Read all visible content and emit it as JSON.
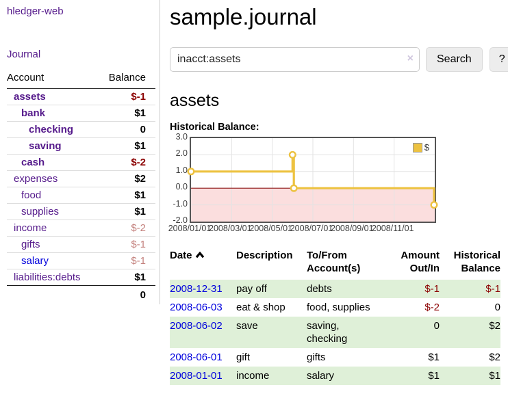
{
  "brand": "hledger-web",
  "nav": {
    "journal": "Journal"
  },
  "sidebar": {
    "header": {
      "account": "Account",
      "balance": "Balance"
    },
    "accounts": [
      {
        "name": "assets",
        "balance": "$-1",
        "indent": 1,
        "bold": true,
        "link": "purple",
        "balance_style": "neg"
      },
      {
        "name": "bank",
        "balance": "$1",
        "indent": 2,
        "bold": true,
        "link": "purple",
        "balance_style": "pos"
      },
      {
        "name": "checking",
        "balance": "0",
        "indent": 3,
        "bold": true,
        "link": "purple",
        "balance_style": "pos"
      },
      {
        "name": "saving",
        "balance": "$1",
        "indent": 3,
        "bold": true,
        "link": "purple",
        "balance_style": "pos"
      },
      {
        "name": "cash",
        "balance": "$-2",
        "indent": 2,
        "bold": true,
        "link": "purple",
        "balance_style": "neg"
      },
      {
        "name": "expenses",
        "balance": "$2",
        "indent": 1,
        "bold": false,
        "link": "purple",
        "balance_style": "pos"
      },
      {
        "name": "food",
        "balance": "$1",
        "indent": 2,
        "bold": false,
        "link": "purple",
        "balance_style": "pos"
      },
      {
        "name": "supplies",
        "balance": "$1",
        "indent": 2,
        "bold": false,
        "link": "purple",
        "balance_style": "pos"
      },
      {
        "name": "income",
        "balance": "$-2",
        "indent": 1,
        "bold": false,
        "link": "purple",
        "balance_style": "negsoft"
      },
      {
        "name": "gifts",
        "balance": "$-1",
        "indent": 2,
        "bold": false,
        "link": "purple",
        "balance_style": "negsoft"
      },
      {
        "name": "salary",
        "balance": "$-1",
        "indent": 2,
        "bold": false,
        "link": "blue",
        "balance_style": "negsoft"
      },
      {
        "name": "liabilities:debts",
        "balance": "$1",
        "indent": 1,
        "bold": false,
        "link": "purple",
        "balance_style": "pos"
      }
    ],
    "total": "0"
  },
  "page": {
    "title": "sample.journal",
    "account_title": "assets",
    "chart_label": "Historical Balance:"
  },
  "search": {
    "value": "inacct:assets",
    "clear": "×",
    "button": "Search",
    "help": "?"
  },
  "chart_data": {
    "type": "line",
    "title": "Historical Balance:",
    "step": true,
    "series": [
      {
        "name": "$",
        "color": "#edc240",
        "points": [
          {
            "date": "2008-01-01",
            "value": 1
          },
          {
            "date": "2008-06-01",
            "value": 2
          },
          {
            "date": "2008-06-03",
            "value": 0
          },
          {
            "date": "2008-12-31",
            "value": -1
          }
        ]
      }
    ],
    "x_tick_labels": [
      "2008/01/01",
      "2008/03/01",
      "2008/05/01",
      "2008/07/01",
      "2008/09/01",
      "2008/11/01"
    ],
    "y_tick_labels": [
      "3.0",
      "2.0",
      "1.0",
      "0.0",
      "-1.0",
      "-2.0"
    ],
    "ylim": [
      -2,
      3
    ],
    "x_range": [
      "2008-01-01",
      "2008-12-31"
    ],
    "grid": true,
    "gridline_color": "#e3e3e3",
    "negative_fill": "#fbdede",
    "zero_line_color": "#8b1414",
    "legend": {
      "label": "$",
      "position": "top-right"
    }
  },
  "register": {
    "headers": {
      "date": "Date",
      "description": "Description",
      "account": "To/From Account(s)",
      "amount": "Amount Out/In",
      "balance": "Historical Balance"
    },
    "rows": [
      {
        "date": "2008-12-31",
        "description": "pay off",
        "accounts": "debts",
        "amount": "$-1",
        "balance": "$-1"
      },
      {
        "date": "2008-06-03",
        "description": "eat & shop",
        "accounts": "food, supplies",
        "amount": "$-2",
        "balance": "0"
      },
      {
        "date": "2008-06-02",
        "description": "save",
        "accounts": "saving, checking",
        "amount": "0",
        "balance": "$2"
      },
      {
        "date": "2008-06-01",
        "description": "gift",
        "accounts": "gifts",
        "amount": "$1",
        "balance": "$2"
      },
      {
        "date": "2008-01-01",
        "description": "income",
        "accounts": "salary",
        "amount": "$1",
        "balance": "$1"
      }
    ]
  },
  "colors": {
    "link_visited": "#551a8b",
    "link_unvisited": "#0000dd",
    "negative_strong": "#8b0000",
    "negative_soft": "#c4827e",
    "row_highlight": "#dff0d8",
    "chart_line": "#edc240"
  }
}
